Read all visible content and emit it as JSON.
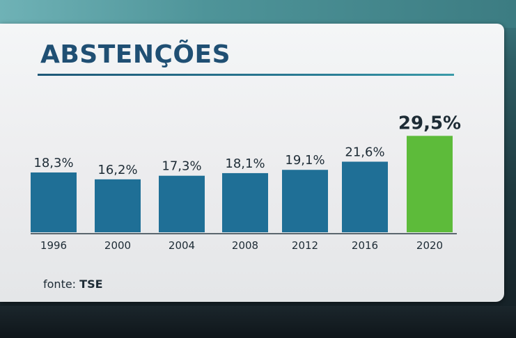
{
  "chart_data": {
    "type": "bar",
    "title": "ABSTENÇÕES",
    "categories": [
      "1996",
      "2000",
      "2004",
      "2008",
      "2012",
      "2016",
      "2020"
    ],
    "values": [
      18.3,
      16.2,
      17.3,
      18.1,
      19.1,
      21.6,
      29.5
    ],
    "value_labels": [
      "18,3%",
      "16,2%",
      "17,3%",
      "18,1%",
      "19,1%",
      "21,6%",
      "29,5%"
    ],
    "highlight_index": 6,
    "colors": {
      "bar": "#1f6f96",
      "highlight": "#5dbb3a",
      "title": "#1f4f73"
    },
    "grid": false,
    "legend": "none"
  },
  "source": {
    "label": "fonte:",
    "value": "TSE"
  }
}
